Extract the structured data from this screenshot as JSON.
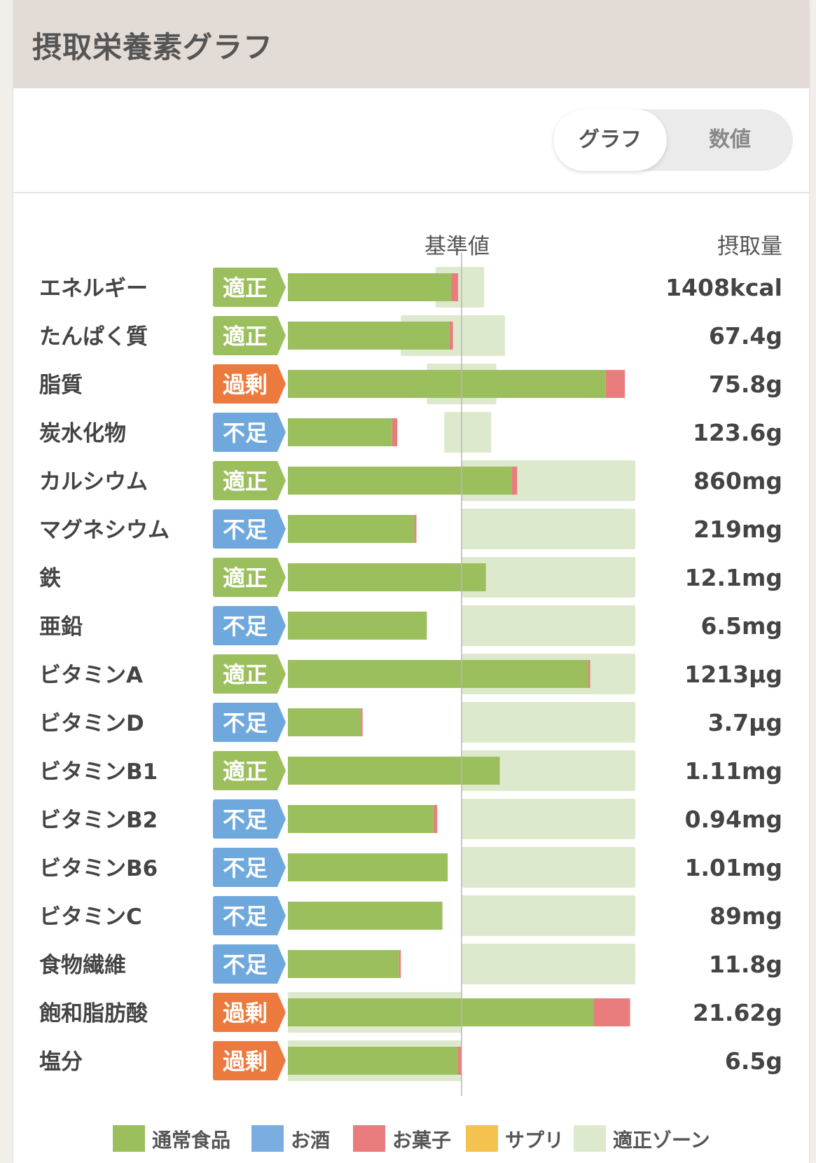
{
  "header": {
    "title": "摂取栄養素グラフ"
  },
  "toggle": {
    "graph_label": "グラフ",
    "number_label": "数値",
    "selected": "グラフ"
  },
  "columns": {
    "reference": "基準値",
    "amount": "摂取量"
  },
  "colors": {
    "regular_food": "#9cbf5e",
    "alcohol": "#7aaee0",
    "snacks": "#e97d7d",
    "supplement": "#f4c24f",
    "proper_zone": "#dde9cd",
    "status_proper": "#9cbf5e",
    "status_excess": "#ec7a3e",
    "status_deficient": "#6fa8dc"
  },
  "chart_data": {
    "type": "bar",
    "title": "摂取栄養素グラフ",
    "reference_label": "基準値",
    "value_note": "bars as percent of reference value (基準値 = 100)",
    "categories": [
      "エネルギー",
      "たんぱく質",
      "脂質",
      "炭水化物",
      "カルシウム",
      "マグネシウム",
      "鉄",
      "亜鉛",
      "ビタミンA",
      "ビタミンD",
      "ビタミンB1",
      "ビタミンB2",
      "ビタミンB6",
      "ビタミンC",
      "食物繊維",
      "飽和脂肪酸",
      "塩分"
    ],
    "amounts": [
      "1408kcal",
      "67.4g",
      "75.8g",
      "123.6g",
      "860mg",
      "219mg",
      "12.1mg",
      "6.5mg",
      "1213µg",
      "3.7µg",
      "1.11mg",
      "0.94mg",
      "1.01mg",
      "89mg",
      "11.8g",
      "21.62g",
      "6.5g"
    ],
    "status": [
      "適正",
      "適正",
      "過剰",
      "不足",
      "適正",
      "不足",
      "適正",
      "不足",
      "適正",
      "不足",
      "適正",
      "不足",
      "不足",
      "不足",
      "不足",
      "過剰",
      "過剰"
    ],
    "series": [
      {
        "name": "通常食品",
        "values": [
          94,
          93,
          183,
          60,
          129,
          73,
          114,
          80,
          173,
          42,
          122,
          84,
          92,
          89,
          64,
          176,
          98
        ]
      },
      {
        "name": "お酒",
        "values": [
          0,
          0,
          0,
          0,
          0,
          0,
          0,
          0,
          0,
          0,
          0,
          0,
          0,
          0,
          0,
          0,
          0
        ]
      },
      {
        "name": "お菓子",
        "values": [
          4,
          2,
          11,
          3,
          3,
          1,
          0,
          0,
          1,
          1,
          0,
          2,
          0,
          0,
          1,
          21,
          2
        ]
      },
      {
        "name": "サプリ",
        "values": [
          0,
          0,
          0,
          0,
          0,
          0,
          0,
          0,
          0,
          0,
          0,
          0,
          0,
          0,
          0,
          0,
          0
        ]
      }
    ],
    "proper_zone": [
      [
        85,
        113
      ],
      [
        65,
        125
      ],
      [
        80,
        120
      ],
      [
        90,
        117
      ],
      [
        100,
        200
      ],
      [
        100,
        200
      ],
      [
        100,
        200
      ],
      [
        100,
        200
      ],
      [
        100,
        200
      ],
      [
        100,
        200
      ],
      [
        100,
        200
      ],
      [
        100,
        200
      ],
      [
        100,
        200
      ],
      [
        100,
        200
      ],
      [
        100,
        200
      ],
      [
        0,
        100
      ],
      [
        0,
        100
      ]
    ],
    "xlim": [
      0,
      200
    ],
    "legend": [
      "通常食品",
      "お酒",
      "お菓子",
      "サプリ",
      "適正ゾーン"
    ],
    "legend_position": "bottom"
  },
  "legend": [
    {
      "label": "通常食品",
      "color": "#9cbf5e"
    },
    {
      "label": "お酒",
      "color": "#7aaee0"
    },
    {
      "label": "お菓子",
      "color": "#e97d7d"
    },
    {
      "label": "サプリ",
      "color": "#f4c24f"
    },
    {
      "label": "適正ゾーン",
      "color": "#dde9cd"
    }
  ]
}
